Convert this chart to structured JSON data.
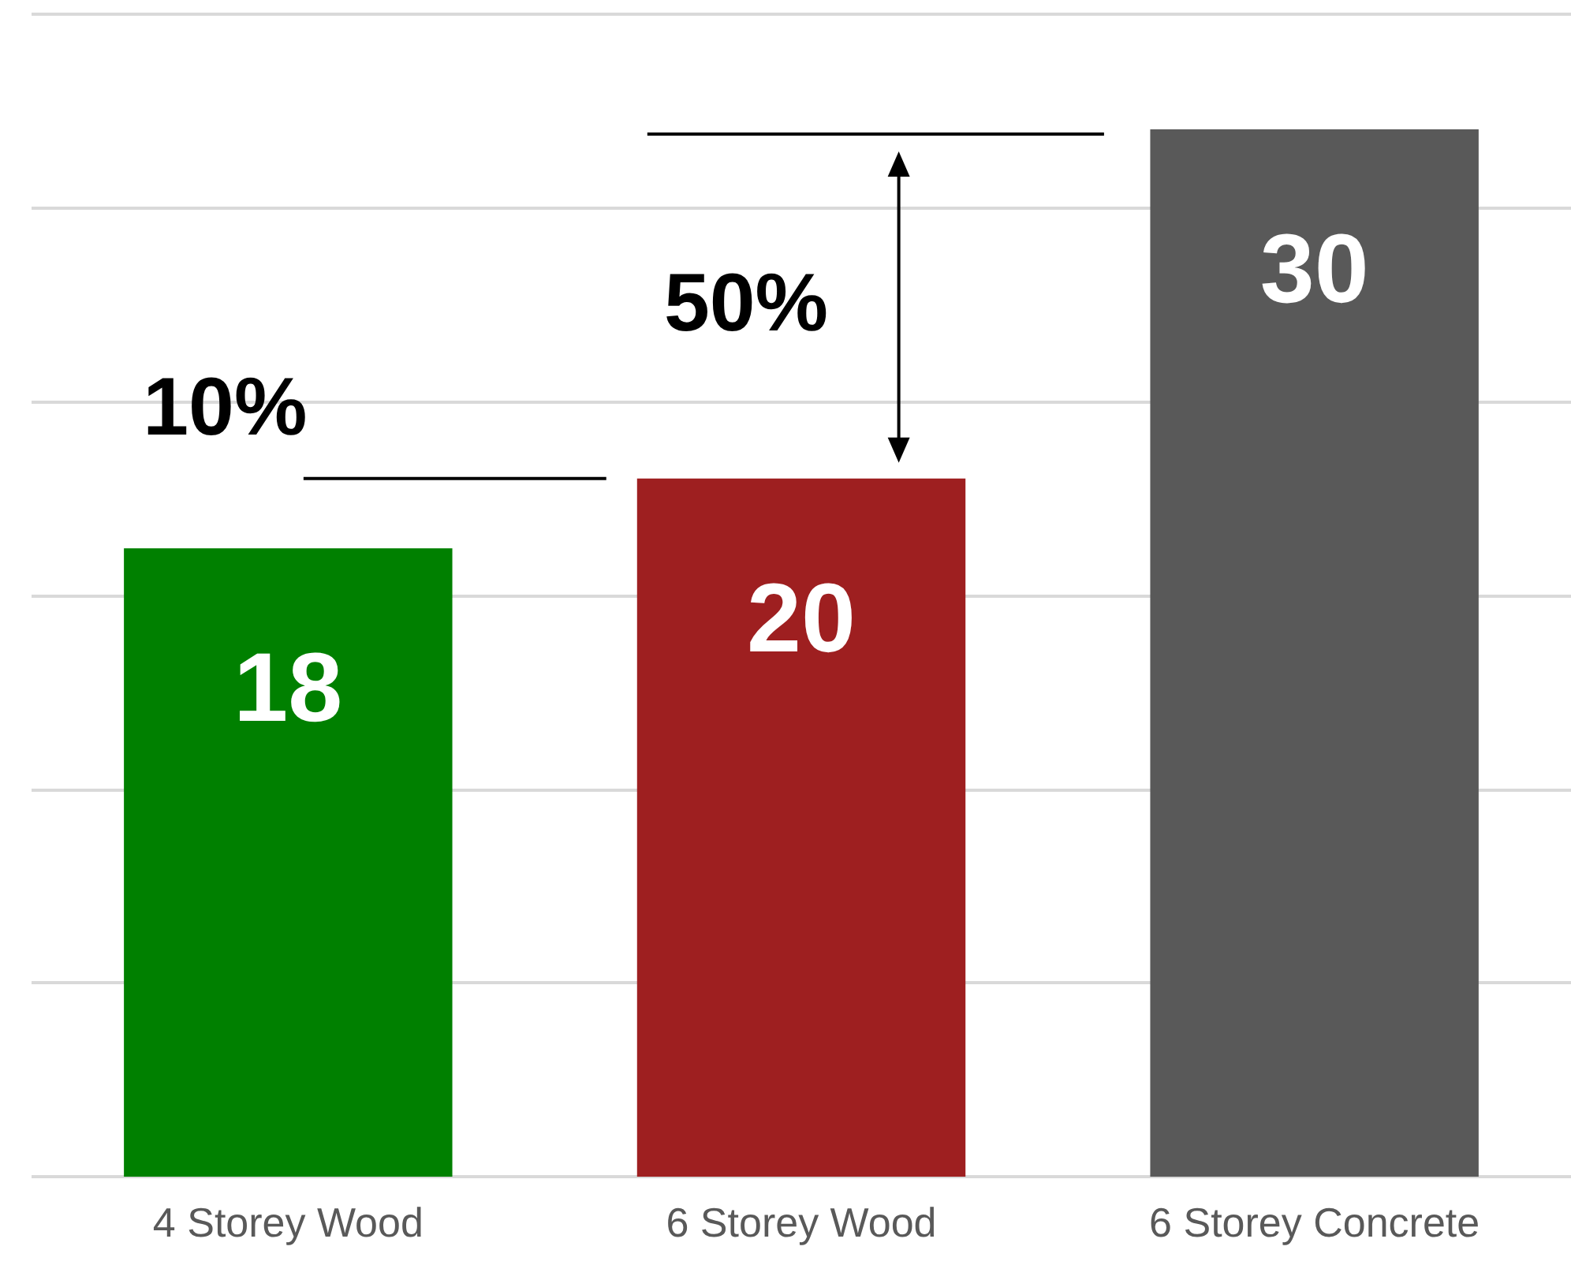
{
  "chart_data": {
    "type": "bar",
    "categories": [
      "4 Storey Wood",
      "6 Storey Wood",
      "6 Storey Concrete"
    ],
    "values": [
      18,
      20,
      30
    ],
    "colors": [
      "#008000",
      "#9e1f20",
      "#595959"
    ],
    "data_labels": true,
    "ylim": [
      0,
      33.3
    ],
    "yticks": [
      {
        "value": 0,
        "label": null
      },
      {
        "value": 5.55,
        "label": null
      },
      {
        "value": 11.1,
        "label": null
      },
      {
        "value": 16.65,
        "label": null
      },
      {
        "value": 22.2,
        "label": null
      },
      {
        "value": 27.75,
        "label": null
      },
      {
        "value": 33.3,
        "label": null
      }
    ],
    "tick_labels": "x",
    "grid": "y",
    "annotations": [
      "10%",
      "50%"
    ]
  }
}
